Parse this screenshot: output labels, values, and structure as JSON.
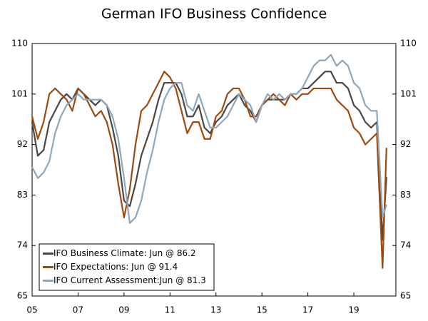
{
  "chart_data": {
    "type": "line",
    "title": "German IFO Business Confidence",
    "x": [
      2005,
      2005.25,
      2005.5,
      2005.75,
      2006,
      2006.25,
      2006.5,
      2006.75,
      2007,
      2007.25,
      2007.5,
      2007.75,
      2008,
      2008.25,
      2008.5,
      2008.75,
      2009,
      2009.25,
      2009.5,
      2009.75,
      2010,
      2010.25,
      2010.5,
      2010.75,
      2011,
      2011.25,
      2011.5,
      2011.75,
      2012,
      2012.25,
      2012.5,
      2012.75,
      2013,
      2013.25,
      2013.5,
      2013.75,
      2014,
      2014.25,
      2014.5,
      2014.75,
      2015,
      2015.25,
      2015.5,
      2015.75,
      2016,
      2016.25,
      2016.5,
      2016.75,
      2017,
      2017.25,
      2017.5,
      2017.75,
      2018,
      2018.25,
      2018.5,
      2018.75,
      2019,
      2019.25,
      2019.5,
      2019.75,
      2020,
      2020.25,
      2020.42
    ],
    "series": [
      {
        "name": "IFO Business Climate: Jun @ 86.2",
        "color": "#4d4540",
        "values": [
          96,
          90,
          91,
          96,
          98,
          100,
          101,
          100,
          102,
          101,
          100,
          99,
          100,
          99,
          95,
          90,
          82,
          81,
          85,
          90,
          93,
          96,
          100,
          103,
          103,
          103,
          101,
          97,
          97,
          99,
          95,
          94,
          96,
          97,
          99,
          100,
          101,
          99,
          98,
          96,
          99,
          100,
          100,
          100,
          100,
          101,
          101,
          102,
          102,
          103,
          104,
          105,
          105,
          103,
          103,
          102,
          99,
          98,
          96,
          95,
          96,
          75,
          86.2
        ]
      },
      {
        "name": "IFO Expectations: Jun @ 91.4",
        "color": "#9c4a10",
        "values": [
          97,
          93,
          96,
          101,
          102,
          101,
          100,
          98,
          102,
          101,
          99,
          97,
          98,
          96,
          92,
          85,
          79,
          84,
          92,
          98,
          99,
          101,
          103,
          105,
          104,
          102,
          98,
          94,
          96,
          96,
          93,
          93,
          97,
          98,
          101,
          102,
          102,
          100,
          97,
          97,
          99,
          100,
          101,
          100,
          99,
          101,
          100,
          101,
          101,
          102,
          102,
          102,
          102,
          100,
          99,
          98,
          95,
          94,
          92,
          93,
          94,
          70,
          91.4
        ]
      },
      {
        "name": "IFO Current Assessment:Jun @ 81.3",
        "color": "#8fa7bb",
        "values": [
          88,
          86,
          87,
          89,
          94,
          97,
          99,
          100,
          101,
          100,
          100,
          100,
          100,
          99,
          97,
          93,
          86,
          78,
          79,
          82,
          87,
          91,
          96,
          100,
          102,
          103,
          103,
          99,
          98,
          101,
          98,
          95,
          95,
          96,
          97,
          99,
          101,
          100,
          99,
          96,
          99,
          101,
          100,
          101,
          100,
          101,
          101,
          102,
          104,
          106,
          107,
          107,
          108,
          106,
          107,
          106,
          103,
          102,
          99,
          98,
          98,
          79,
          81.3
        ]
      }
    ],
    "xlim": [
      2005,
      2020.83
    ],
    "xticks": [
      {
        "value": 2005,
        "label": "05"
      },
      {
        "value": 2007,
        "label": "07"
      },
      {
        "value": 2009,
        "label": "09"
      },
      {
        "value": 2011,
        "label": "11"
      },
      {
        "value": 2013,
        "label": "13"
      },
      {
        "value": 2015,
        "label": "15"
      },
      {
        "value": 2017,
        "label": "17"
      },
      {
        "value": 2019,
        "label": "19"
      }
    ],
    "ylim": [
      65,
      110
    ],
    "yticks": [
      65,
      74,
      83,
      92,
      101,
      110
    ],
    "y2lim": [
      65,
      110
    ],
    "y2ticks": [
      65,
      74,
      83,
      92,
      101,
      110
    ],
    "legend": "lower left"
  }
}
